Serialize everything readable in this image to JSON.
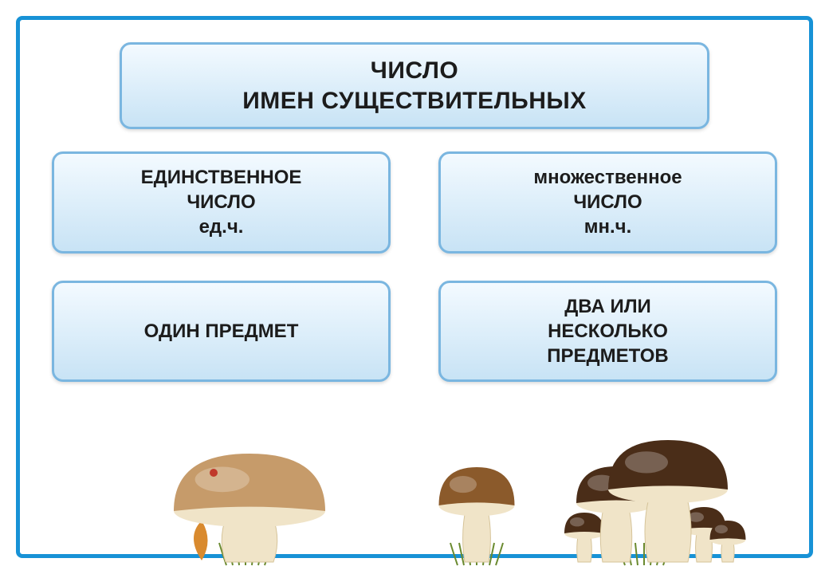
{
  "colors": {
    "frame_border": "#1792d6",
    "box_border": "#7ab6e0",
    "box_grad_top": "#f3faff",
    "box_grad_bot": "#c8e3f5",
    "title_text": "#1c1c1c"
  },
  "title": {
    "line1": "ЧИСЛО",
    "line2": "ИМЕН СУЩЕСТВИТЕЛЬНЫХ"
  },
  "left": {
    "header1": "ЕДИНСТВЕННОЕ",
    "header2": "ЧИСЛО",
    "header3": "ед.ч.",
    "desc": "ОДИН ПРЕДМЕТ"
  },
  "right": {
    "header1": "множественное",
    "header2": "ЧИСЛО",
    "header3": "мн.ч.",
    "desc1": "ДВА ИЛИ",
    "desc2": "НЕСКОЛЬКО",
    "desc3": "ПРЕДМЕТОВ"
  },
  "mushroom": {
    "cap_light": "#c69b6a",
    "cap_dark": "#4a2d18",
    "cap_mid": "#8b5a2b",
    "stem_light": "#f0e4c8",
    "stem_shade": "#d6c49a",
    "grass": "#6a8a2f",
    "leaf": "#d98a2e"
  }
}
